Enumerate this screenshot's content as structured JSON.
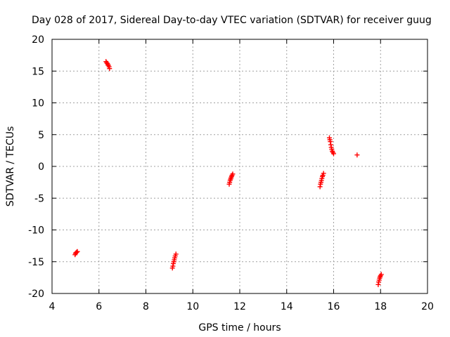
{
  "chart_data": {
    "type": "scatter",
    "title": "Day 028 of 2017, Sidereal Day-to-day VTEC variation (SDTVAR) for receiver guug",
    "xlabel": "GPS time / hours",
    "ylabel": "SDTVAR / TECUs",
    "xlim": [
      4,
      20
    ],
    "ylim": [
      -20,
      20
    ],
    "xticks": [
      4,
      6,
      8,
      10,
      12,
      14,
      16,
      18,
      20
    ],
    "yticks": [
      -20,
      -15,
      -10,
      -5,
      0,
      5,
      10,
      15,
      20
    ],
    "grid": true,
    "marker": "plus",
    "colors": {
      "series": "#ff0000",
      "grid": "#a0a0a0",
      "axis": "#000000"
    },
    "series": [
      {
        "points": [
          [
            4.98,
            -13.9
          ],
          [
            5.0,
            -13.7
          ],
          [
            5.02,
            -13.6
          ],
          [
            5.05,
            -13.5
          ],
          [
            5.08,
            -13.4
          ],
          [
            6.3,
            16.5
          ],
          [
            6.33,
            16.3
          ],
          [
            6.36,
            16.2
          ],
          [
            6.38,
            16.0
          ],
          [
            6.4,
            15.9
          ],
          [
            6.43,
            15.7
          ],
          [
            6.45,
            15.4
          ],
          [
            9.13,
            -16.0
          ],
          [
            9.15,
            -15.7
          ],
          [
            9.17,
            -15.3
          ],
          [
            9.19,
            -15.0
          ],
          [
            9.21,
            -14.7
          ],
          [
            9.23,
            -14.4
          ],
          [
            9.25,
            -14.1
          ],
          [
            9.28,
            -13.8
          ],
          [
            11.55,
            -2.8
          ],
          [
            11.57,
            -2.5
          ],
          [
            11.59,
            -2.2
          ],
          [
            11.61,
            -2.0
          ],
          [
            11.63,
            -1.8
          ],
          [
            11.65,
            -1.6
          ],
          [
            11.67,
            -1.4
          ],
          [
            11.7,
            -1.2
          ],
          [
            15.42,
            -3.2
          ],
          [
            15.44,
            -2.8
          ],
          [
            15.46,
            -2.5
          ],
          [
            15.48,
            -2.2
          ],
          [
            15.5,
            -1.9
          ],
          [
            15.52,
            -1.6
          ],
          [
            15.54,
            -1.4
          ],
          [
            15.57,
            -1.1
          ],
          [
            15.82,
            4.5
          ],
          [
            15.84,
            4.2
          ],
          [
            15.86,
            3.9
          ],
          [
            15.88,
            3.4
          ],
          [
            15.9,
            3.0
          ],
          [
            15.92,
            2.7
          ],
          [
            15.94,
            2.4
          ],
          [
            15.97,
            2.2
          ],
          [
            16.0,
            2.0
          ],
          [
            17.0,
            1.8
          ],
          [
            17.9,
            -18.6
          ],
          [
            17.92,
            -18.2
          ],
          [
            17.94,
            -17.9
          ],
          [
            17.96,
            -17.6
          ],
          [
            17.98,
            -17.4
          ],
          [
            18.0,
            -17.2
          ],
          [
            18.03,
            -17.0
          ]
        ]
      }
    ]
  }
}
